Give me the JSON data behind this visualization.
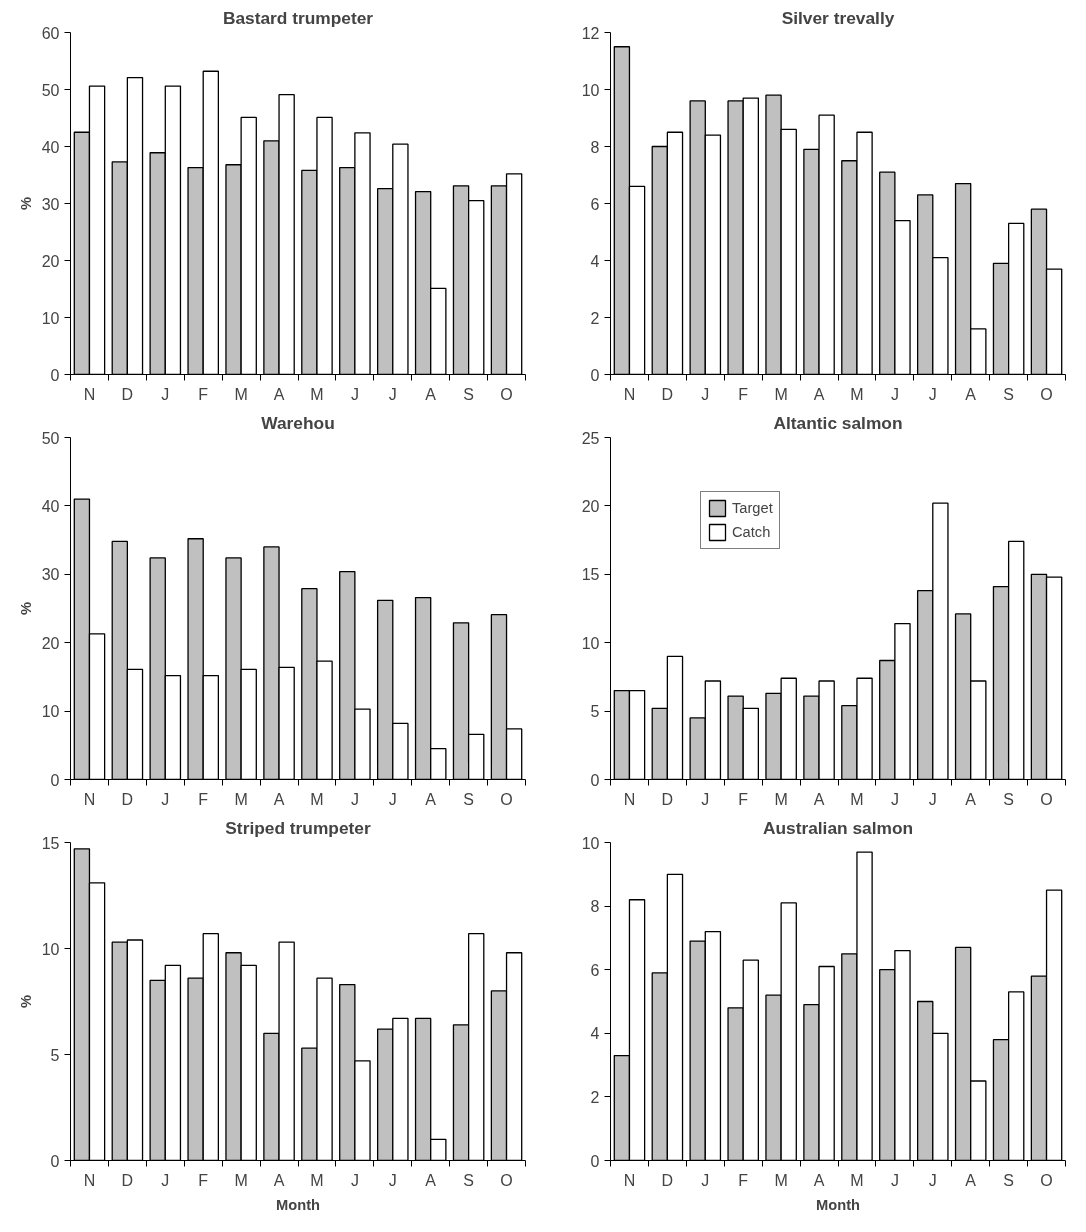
{
  "chart_data": [
    {
      "type": "bar",
      "title": "Bastard trumpeter",
      "ylabel": "%",
      "categories": [
        "N",
        "D",
        "J",
        "F",
        "M",
        "A",
        "M",
        "J",
        "J",
        "A",
        "S",
        "O"
      ],
      "ylim": [
        0,
        60
      ],
      "yticks": [
        0,
        10,
        20,
        30,
        40,
        50,
        60
      ],
      "grid": false,
      "legend": false,
      "series": [
        {
          "color": "#c0c0c0",
          "values": [
            42.5,
            37.3,
            38.9,
            36.3,
            36.8,
            41,
            35.8,
            36.3,
            32.6,
            32.1,
            33.1,
            33.1
          ]
        },
        {
          "color": "#ffffff",
          "values": [
            50.6,
            52.1,
            50.6,
            53.2,
            45.1,
            49.1,
            45.1,
            42.4,
            40.4,
            15.1,
            30.5,
            35.2
          ]
        }
      ]
    },
    {
      "type": "bar",
      "title": "Silver trevally",
      "categories": [
        "N",
        "D",
        "J",
        "F",
        "M",
        "A",
        "M",
        "J",
        "J",
        "A",
        "S",
        "O"
      ],
      "ylim": [
        0,
        12
      ],
      "yticks": [
        0,
        2,
        4,
        6,
        8,
        10,
        12
      ],
      "grid": false,
      "legend": false,
      "series": [
        {
          "color": "#c0c0c0",
          "values": [
            11.5,
            8.0,
            9.6,
            9.6,
            9.8,
            7.9,
            7.5,
            7.1,
            6.3,
            6.7,
            3.9,
            5.8
          ]
        },
        {
          "color": "#ffffff",
          "values": [
            6.6,
            8.5,
            8.4,
            9.7,
            8.6,
            9.1,
            8.5,
            5.4,
            4.1,
            1.6,
            5.3,
            3.7
          ]
        }
      ]
    },
    {
      "type": "bar",
      "title": "Warehou",
      "ylabel": "%",
      "categories": [
        "N",
        "D",
        "J",
        "F",
        "M",
        "A",
        "M",
        "J",
        "J",
        "A",
        "S",
        "O"
      ],
      "ylim": [
        0,
        50
      ],
      "yticks": [
        0,
        10,
        20,
        30,
        40,
        50
      ],
      "grid": false,
      "legend": false,
      "series": [
        {
          "color": "#c0c0c0",
          "values": [
            41,
            34.8,
            32.4,
            35.2,
            32.4,
            34,
            27.9,
            30.4,
            26.2,
            26.6,
            22.9,
            24.1
          ]
        },
        {
          "color": "#ffffff",
          "values": [
            21.3,
            16.1,
            15.2,
            15.2,
            16.1,
            16.4,
            17.3,
            10.3,
            8.2,
            4.5,
            6.6,
            7.4
          ]
        }
      ]
    },
    {
      "type": "bar",
      "title": "Altantic salmon",
      "categories": [
        "N",
        "D",
        "J",
        "F",
        "M",
        "A",
        "M",
        "J",
        "J",
        "A",
        "S",
        "O"
      ],
      "ylim": [
        0,
        25
      ],
      "yticks": [
        0,
        5,
        10,
        15,
        20,
        25
      ],
      "grid": false,
      "legend": "top left",
      "series": [
        {
          "name": "Target",
          "color": "#c0c0c0",
          "values": [
            6.5,
            5.2,
            4.5,
            6.1,
            6.3,
            6.1,
            5.4,
            8.7,
            13.8,
            12.1,
            14.1,
            15.0
          ]
        },
        {
          "name": "Catch",
          "color": "#ffffff",
          "values": [
            6.5,
            9.0,
            7.2,
            5.2,
            7.4,
            7.2,
            7.4,
            11.4,
            20.2,
            7.2,
            17.4,
            14.8
          ]
        }
      ]
    },
    {
      "type": "bar",
      "title": "Striped trumpeter",
      "ylabel": "%",
      "xlabel": "Month",
      "categories": [
        "N",
        "D",
        "J",
        "F",
        "M",
        "A",
        "M",
        "J",
        "J",
        "A",
        "S",
        "O"
      ],
      "ylim": [
        0,
        15
      ],
      "yticks": [
        0,
        5,
        10,
        15
      ],
      "grid": false,
      "legend": false,
      "series": [
        {
          "color": "#c0c0c0",
          "values": [
            14.7,
            10.3,
            8.5,
            8.6,
            9.8,
            6.0,
            5.3,
            8.3,
            6.2,
            6.7,
            6.4,
            8.0
          ]
        },
        {
          "color": "#ffffff",
          "values": [
            13.1,
            10.4,
            9.2,
            10.7,
            9.2,
            10.3,
            8.6,
            4.7,
            6.7,
            1.0,
            10.7,
            9.8
          ]
        }
      ]
    },
    {
      "type": "bar",
      "title": "Australian salmon",
      "xlabel": "Month",
      "categories": [
        "N",
        "D",
        "J",
        "F",
        "M",
        "A",
        "M",
        "J",
        "J",
        "A",
        "S",
        "O"
      ],
      "ylim": [
        0,
        10
      ],
      "yticks": [
        0,
        2,
        4,
        6,
        8,
        10
      ],
      "grid": false,
      "legend": false,
      "series": [
        {
          "color": "#c0c0c0",
          "values": [
            3.3,
            5.9,
            6.9,
            4.8,
            5.2,
            4.9,
            6.5,
            6.0,
            5.0,
            6.7,
            3.8,
            5.8
          ]
        },
        {
          "color": "#ffffff",
          "values": [
            8.2,
            9.0,
            7.2,
            6.3,
            8.1,
            6.1,
            9.7,
            6.6,
            4.0,
            2.5,
            5.3,
            8.5
          ]
        }
      ]
    }
  ]
}
